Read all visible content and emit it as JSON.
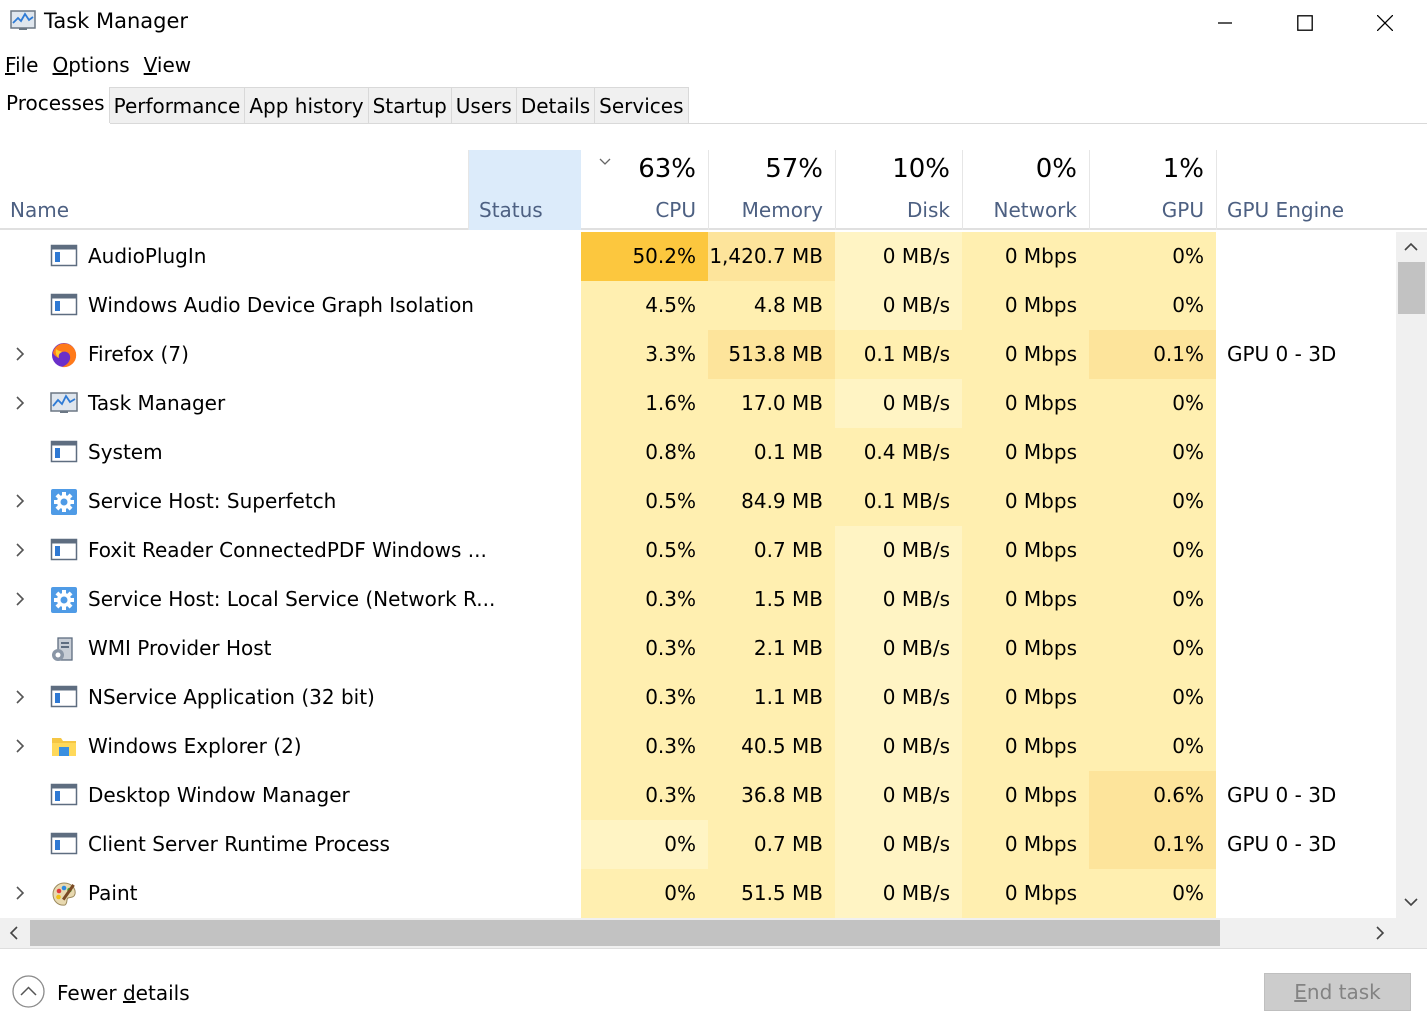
{
  "window": {
    "title": "Task Manager",
    "icon": "task-manager-icon"
  },
  "menu": [
    {
      "label": "File",
      "accel": "F",
      "rest": "ile"
    },
    {
      "label": "Options",
      "accel": "O",
      "rest": "ptions"
    },
    {
      "label": "View",
      "accel": "V",
      "rest": "iew"
    }
  ],
  "tabs": [
    {
      "label": "Processes",
      "active": true
    },
    {
      "label": "Performance",
      "active": false
    },
    {
      "label": "App history",
      "active": false
    },
    {
      "label": "Startup",
      "active": false
    },
    {
      "label": "Users",
      "active": false
    },
    {
      "label": "Details",
      "active": false
    },
    {
      "label": "Services",
      "active": false
    }
  ],
  "columns": {
    "name": {
      "label": "Name"
    },
    "status": {
      "label": "Status"
    },
    "cpu": {
      "label": "CPU",
      "total": "63%"
    },
    "memory": {
      "label": "Memory",
      "total": "57%"
    },
    "disk": {
      "label": "Disk",
      "total": "10%"
    },
    "network": {
      "label": "Network",
      "total": "0%"
    },
    "gpu": {
      "label": "GPU",
      "total": "1%"
    },
    "gpu_engine": {
      "label": "GPU Engine"
    }
  },
  "colors": {
    "heat0": "#fff4c4",
    "heat1": "#ffefb0",
    "heat2": "#fde49b",
    "heat_high": "#fcc73e",
    "header_blue": "#4d6082",
    "status_highlight": "#dcebfa"
  },
  "processes": [
    {
      "name": "AudioPlugIn",
      "icon": "app-window-icon",
      "expandable": false,
      "cpu": "50.2%",
      "memory": "1,420.7 MB",
      "disk": "0 MB/s",
      "network": "0 Mbps",
      "gpu": "0%",
      "gpu_engine": "",
      "heat": {
        "cpu": 3,
        "memory": 2,
        "disk": 0,
        "network": 1,
        "gpu": 1
      }
    },
    {
      "name": "Windows Audio Device Graph Isolation",
      "icon": "app-window-icon",
      "expandable": false,
      "cpu": "4.5%",
      "memory": "4.8 MB",
      "disk": "0 MB/s",
      "network": "0 Mbps",
      "gpu": "0%",
      "gpu_engine": "",
      "heat": {
        "cpu": 1,
        "memory": 1,
        "disk": 0,
        "network": 1,
        "gpu": 1
      }
    },
    {
      "name": "Firefox (7)",
      "icon": "firefox-icon",
      "expandable": true,
      "cpu": "3.3%",
      "memory": "513.8 MB",
      "disk": "0.1 MB/s",
      "network": "0 Mbps",
      "gpu": "0.1%",
      "gpu_engine": "GPU 0 - 3D",
      "heat": {
        "cpu": 1,
        "memory": 2,
        "disk": 1,
        "network": 1,
        "gpu": 2
      }
    },
    {
      "name": "Task Manager",
      "icon": "task-manager-icon",
      "expandable": true,
      "cpu": "1.6%",
      "memory": "17.0 MB",
      "disk": "0 MB/s",
      "network": "0 Mbps",
      "gpu": "0%",
      "gpu_engine": "",
      "heat": {
        "cpu": 1,
        "memory": 1,
        "disk": 0,
        "network": 1,
        "gpu": 1
      }
    },
    {
      "name": "System",
      "icon": "app-window-icon",
      "expandable": false,
      "cpu": "0.8%",
      "memory": "0.1 MB",
      "disk": "0.4 MB/s",
      "network": "0 Mbps",
      "gpu": "0%",
      "gpu_engine": "",
      "heat": {
        "cpu": 1,
        "memory": 1,
        "disk": 1,
        "network": 1,
        "gpu": 1
      }
    },
    {
      "name": "Service Host: Superfetch",
      "icon": "gear-icon",
      "expandable": true,
      "cpu": "0.5%",
      "memory": "84.9 MB",
      "disk": "0.1 MB/s",
      "network": "0 Mbps",
      "gpu": "0%",
      "gpu_engine": "",
      "heat": {
        "cpu": 1,
        "memory": 1,
        "disk": 1,
        "network": 1,
        "gpu": 1
      }
    },
    {
      "name": "Foxit Reader ConnectedPDF Windows ...",
      "icon": "app-window-icon",
      "expandable": true,
      "cpu": "0.5%",
      "memory": "0.7 MB",
      "disk": "0 MB/s",
      "network": "0 Mbps",
      "gpu": "0%",
      "gpu_engine": "",
      "heat": {
        "cpu": 1,
        "memory": 1,
        "disk": 0,
        "network": 1,
        "gpu": 1
      }
    },
    {
      "name": "Service Host: Local Service (Network R...",
      "icon": "gear-icon",
      "expandable": true,
      "cpu": "0.3%",
      "memory": "1.5 MB",
      "disk": "0 MB/s",
      "network": "0 Mbps",
      "gpu": "0%",
      "gpu_engine": "",
      "heat": {
        "cpu": 1,
        "memory": 1,
        "disk": 0,
        "network": 1,
        "gpu": 1
      }
    },
    {
      "name": "WMI Provider Host",
      "icon": "wmi-host-icon",
      "expandable": false,
      "cpu": "0.3%",
      "memory": "2.1 MB",
      "disk": "0 MB/s",
      "network": "0 Mbps",
      "gpu": "0%",
      "gpu_engine": "",
      "heat": {
        "cpu": 1,
        "memory": 1,
        "disk": 0,
        "network": 1,
        "gpu": 1
      }
    },
    {
      "name": "NService Application (32 bit)",
      "icon": "app-window-icon",
      "expandable": true,
      "cpu": "0.3%",
      "memory": "1.1 MB",
      "disk": "0 MB/s",
      "network": "0 Mbps",
      "gpu": "0%",
      "gpu_engine": "",
      "heat": {
        "cpu": 1,
        "memory": 1,
        "disk": 0,
        "network": 1,
        "gpu": 1
      }
    },
    {
      "name": "Windows Explorer (2)",
      "icon": "explorer-folder-icon",
      "expandable": true,
      "cpu": "0.3%",
      "memory": "40.5 MB",
      "disk": "0 MB/s",
      "network": "0 Mbps",
      "gpu": "0%",
      "gpu_engine": "",
      "heat": {
        "cpu": 1,
        "memory": 1,
        "disk": 0,
        "network": 1,
        "gpu": 1
      }
    },
    {
      "name": "Desktop Window Manager",
      "icon": "app-window-icon",
      "expandable": false,
      "cpu": "0.3%",
      "memory": "36.8 MB",
      "disk": "0 MB/s",
      "network": "0 Mbps",
      "gpu": "0.6%",
      "gpu_engine": "GPU 0 - 3D",
      "heat": {
        "cpu": 1,
        "memory": 1,
        "disk": 0,
        "network": 1,
        "gpu": 2
      }
    },
    {
      "name": "Client Server Runtime Process",
      "icon": "app-window-icon",
      "expandable": false,
      "cpu": "0%",
      "memory": "0.7 MB",
      "disk": "0 MB/s",
      "network": "0 Mbps",
      "gpu": "0.1%",
      "gpu_engine": "GPU 0 - 3D",
      "heat": {
        "cpu": 0,
        "memory": 1,
        "disk": 0,
        "network": 1,
        "gpu": 2
      }
    },
    {
      "name": "Paint",
      "icon": "paint-palette-icon",
      "expandable": true,
      "cpu": "0%",
      "memory": "51.5 MB",
      "disk": "0 MB/s",
      "network": "0 Mbps",
      "gpu": "0%",
      "gpu_engine": "",
      "heat": {
        "cpu": 1,
        "memory": 1,
        "disk": 0,
        "network": 1,
        "gpu": 1
      }
    }
  ],
  "footer": {
    "fewer_details": {
      "pre": "Fewer ",
      "accel": "d",
      "rest": "etails"
    },
    "end_task": {
      "accel": "E",
      "rest": "nd task"
    }
  }
}
